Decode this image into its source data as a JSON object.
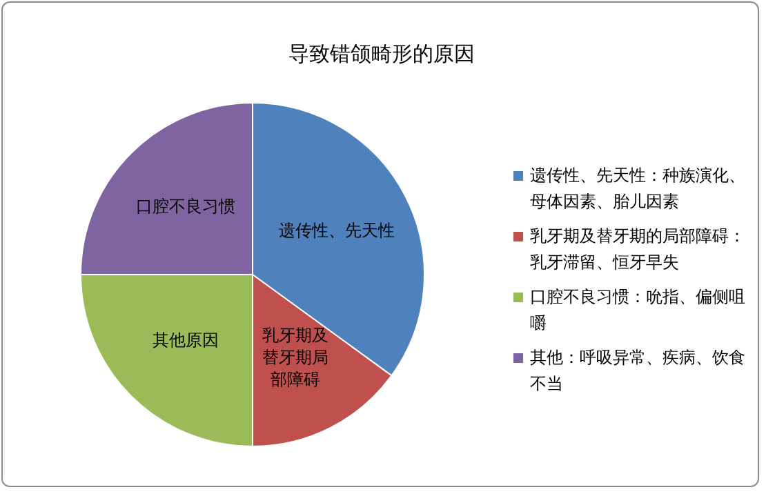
{
  "chart_data": {
    "type": "pie",
    "title": "导致错颌畸形的原因",
    "categories": [
      "遗传性、先天性：种族演化、母体因素、胎儿因素",
      "乳牙期及替牙期的局部障碍：乳牙滞留、恒牙早失",
      "口腔不良习惯：吮指、偏侧咀嚼",
      "其他：呼吸异常、疾病、饮食不当"
    ],
    "values": [
      35,
      15,
      25,
      25
    ],
    "value_labels": [
      "遗传性、先天性",
      "乳牙期及替牙期局部障碍",
      "其他原因",
      "口腔不良习惯"
    ],
    "colors": [
      "#4f81bd",
      "#c0504d",
      "#9bbb59",
      "#8064a2"
    ],
    "legend": "right"
  }
}
